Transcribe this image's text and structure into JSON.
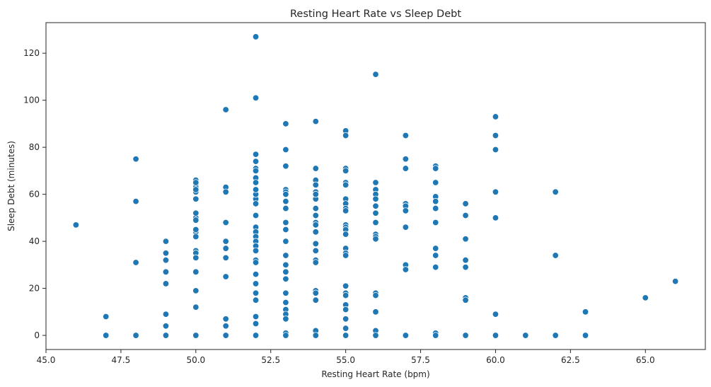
{
  "chart_data": {
    "type": "scatter",
    "title": "Resting Heart Rate vs Sleep Debt",
    "xlabel": "Resting Heart Rate (bpm)",
    "ylabel": "Sleep Debt (minutes)",
    "xlim": [
      45.0,
      67.0
    ],
    "ylim": [
      -6,
      133
    ],
    "xticks": [
      "45.0",
      "47.5",
      "50.0",
      "52.5",
      "55.0",
      "57.5",
      "60.0",
      "62.5",
      "65.0"
    ],
    "xtick_values": [
      45.0,
      47.5,
      50.0,
      52.5,
      55.0,
      57.5,
      60.0,
      62.5,
      65.0
    ],
    "yticks": [
      "0",
      "20",
      "40",
      "60",
      "80",
      "100",
      "120"
    ],
    "ytick_values": [
      0,
      20,
      40,
      60,
      80,
      100,
      120
    ],
    "grid": false,
    "marker_color": "#1f77b4",
    "x": [
      46,
      47,
      47,
      48,
      48,
      48,
      48,
      49,
      49,
      49,
      49,
      49,
      49,
      49,
      49,
      50,
      50,
      50,
      50,
      50,
      50,
      50,
      50,
      50,
      50,
      50,
      50,
      50,
      50,
      50,
      50,
      50,
      50,
      50,
      50,
      51,
      51,
      51,
      51,
      51,
      51,
      51,
      51,
      51,
      51,
      51,
      52,
      52,
      52,
      52,
      52,
      52,
      52,
      52,
      52,
      52,
      52,
      52,
      52,
      52,
      52,
      52,
      52,
      52,
      52,
      52,
      52,
      52,
      52,
      52,
      52,
      52,
      52,
      52,
      53,
      53,
      53,
      53,
      53,
      53,
      53,
      53,
      53,
      53,
      53,
      53,
      53,
      53,
      53,
      53,
      53,
      53,
      53,
      53,
      53,
      53,
      54,
      54,
      54,
      54,
      54,
      54,
      54,
      54,
      54,
      54,
      54,
      54,
      54,
      54,
      54,
      54,
      54,
      54,
      54,
      54,
      54,
      55,
      55,
      55,
      55,
      55,
      55,
      55,
      55,
      55,
      55,
      55,
      55,
      55,
      55,
      55,
      55,
      55,
      55,
      55,
      55,
      55,
      55,
      55,
      55,
      55,
      56,
      56,
      56,
      56,
      56,
      56,
      56,
      56,
      56,
      56,
      56,
      56,
      56,
      56,
      56,
      56,
      57,
      57,
      57,
      57,
      57,
      57,
      57,
      57,
      57,
      57,
      58,
      58,
      58,
      58,
      58,
      58,
      58,
      58,
      58,
      58,
      58,
      58,
      59,
      59,
      59,
      59,
      59,
      59,
      59,
      59,
      60,
      60,
      60,
      60,
      60,
      60,
      60,
      61,
      62,
      62,
      62,
      63,
      63,
      65,
      66
    ],
    "y": [
      47,
      8,
      0,
      75,
      57,
      31,
      0,
      40,
      35,
      32,
      27,
      22,
      9,
      4,
      0,
      66,
      64,
      63,
      61,
      58,
      50,
      49,
      44,
      42,
      36,
      35,
      33,
      27,
      19,
      12,
      0,
      62,
      65,
      52,
      45,
      96,
      63,
      61,
      48,
      40,
      37,
      33,
      25,
      7,
      4,
      0,
      127,
      101,
      77,
      74,
      71,
      70,
      67,
      65,
      58,
      56,
      51,
      46,
      44,
      42,
      40,
      38,
      32,
      31,
      26,
      22,
      18,
      15,
      8,
      5,
      0,
      60,
      62,
      36,
      90,
      79,
      72,
      62,
      61,
      60,
      54,
      48,
      40,
      30,
      27,
      24,
      18,
      14,
      11,
      9,
      7,
      1,
      0,
      57,
      45,
      34,
      91,
      71,
      66,
      64,
      61,
      58,
      54,
      48,
      47,
      44,
      39,
      32,
      31,
      19,
      18,
      15,
      2,
      0,
      60,
      51,
      36,
      87,
      85,
      71,
      70,
      65,
      64,
      58,
      56,
      54,
      53,
      47,
      46,
      45,
      37,
      35,
      34,
      21,
      18,
      17,
      13,
      11,
      7,
      3,
      0,
      43,
      111,
      65,
      62,
      60,
      58,
      55,
      52,
      43,
      42,
      41,
      18,
      17,
      10,
      2,
      0,
      48,
      85,
      75,
      71,
      56,
      55,
      53,
      46,
      30,
      28,
      0,
      72,
      71,
      59,
      57,
      54,
      37,
      34,
      29,
      1,
      0,
      65,
      48,
      56,
      51,
      32,
      29,
      16,
      15,
      0,
      41,
      93,
      85,
      79,
      61,
      50,
      9,
      0,
      0,
      61,
      34,
      0,
      10,
      0,
      16,
      23
    ]
  }
}
